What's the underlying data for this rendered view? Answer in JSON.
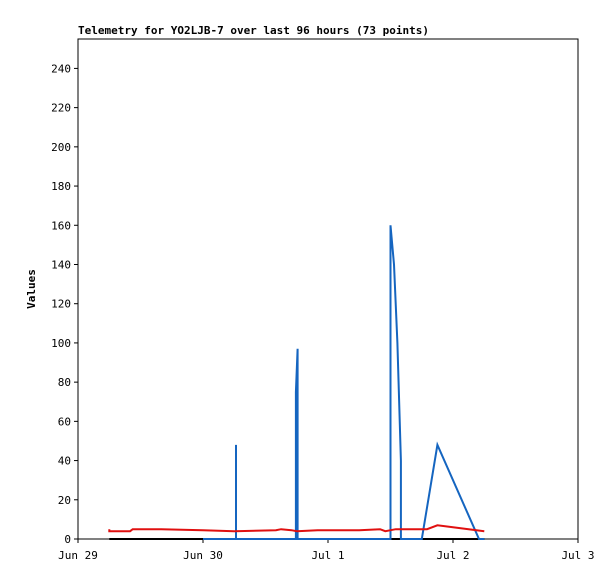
{
  "chart_data": {
    "type": "line",
    "title": "Telemetry for YO2LJB-7 over last 96 hours (73 points)",
    "xlabel": "",
    "ylabel": "Values",
    "xlim": [
      "2025-06-29 00:00",
      "2025-07-03 00:00"
    ],
    "ylim": [
      0,
      255
    ],
    "x_ticks": [
      {
        "label": "Jun 29",
        "value": "2025-06-29 00:00"
      },
      {
        "label": "Jun 30",
        "value": "2025-06-30 00:00"
      },
      {
        "label": "Jul 1",
        "value": "2025-07-01 00:00"
      },
      {
        "label": "Jul 2",
        "value": "2025-07-02 00:00"
      },
      {
        "label": "Jul 3",
        "value": "2025-07-03 00:00"
      }
    ],
    "y_ticks": [
      0,
      20,
      40,
      60,
      80,
      100,
      120,
      140,
      160,
      180,
      200,
      220,
      240
    ],
    "grid": false,
    "legend": "none",
    "series": [
      {
        "color": "#000000",
        "points": [
          {
            "x": "2025-06-29 06:00",
            "y": 0
          },
          {
            "x": "2025-07-02 06:00",
            "y": 0
          }
        ]
      },
      {
        "color": "#1565c0",
        "points": [
          {
            "x": "2025-06-30 00:00",
            "y": 0
          },
          {
            "x": "2025-06-30 06:20",
            "y": 0
          },
          {
            "x": "2025-06-30 06:20",
            "y": 48
          },
          {
            "x": "2025-06-30 06:20",
            "y": 0
          },
          {
            "x": "2025-06-30 17:50",
            "y": 0
          },
          {
            "x": "2025-06-30 17:50",
            "y": 75
          },
          {
            "x": "2025-06-30 18:10",
            "y": 97
          },
          {
            "x": "2025-06-30 18:10",
            "y": 0
          },
          {
            "x": "2025-07-01 12:00",
            "y": 0
          },
          {
            "x": "2025-07-01 12:00",
            "y": 160
          },
          {
            "x": "2025-07-01 12:40",
            "y": 140
          },
          {
            "x": "2025-07-01 13:20",
            "y": 100
          },
          {
            "x": "2025-07-01 14:00",
            "y": 40
          },
          {
            "x": "2025-07-01 14:00",
            "y": 0
          },
          {
            "x": "2025-07-01 18:00",
            "y": 0
          },
          {
            "x": "2025-07-01 21:00",
            "y": 48
          },
          {
            "x": "2025-07-02 05:00",
            "y": 0
          },
          {
            "x": "2025-07-02 06:00",
            "y": 0
          }
        ]
      },
      {
        "color": "#e01010",
        "points": [
          {
            "x": "2025-06-29 06:00",
            "y": 5
          },
          {
            "x": "2025-06-29 06:00",
            "y": 4
          },
          {
            "x": "2025-06-29 10:00",
            "y": 4
          },
          {
            "x": "2025-06-29 10:30",
            "y": 5
          },
          {
            "x": "2025-06-29 16:00",
            "y": 5
          },
          {
            "x": "2025-06-30 00:00",
            "y": 4.5
          },
          {
            "x": "2025-06-30 06:00",
            "y": 4
          },
          {
            "x": "2025-06-30 14:00",
            "y": 4.5
          },
          {
            "x": "2025-06-30 15:00",
            "y": 5
          },
          {
            "x": "2025-06-30 17:00",
            "y": 4.5
          },
          {
            "x": "2025-06-30 18:00",
            "y": 4
          },
          {
            "x": "2025-06-30 22:00",
            "y": 4.5
          },
          {
            "x": "2025-07-01 06:00",
            "y": 4.5
          },
          {
            "x": "2025-07-01 10:00",
            "y": 5
          },
          {
            "x": "2025-07-01 11:00",
            "y": 4
          },
          {
            "x": "2025-07-01 13:00",
            "y": 5
          },
          {
            "x": "2025-07-01 15:00",
            "y": 5
          },
          {
            "x": "2025-07-01 17:00",
            "y": 5
          },
          {
            "x": "2025-07-01 19:00",
            "y": 5
          },
          {
            "x": "2025-07-01 21:00",
            "y": 7
          },
          {
            "x": "2025-07-02 00:00",
            "y": 6
          },
          {
            "x": "2025-07-02 06:00",
            "y": 4
          }
        ]
      }
    ]
  }
}
